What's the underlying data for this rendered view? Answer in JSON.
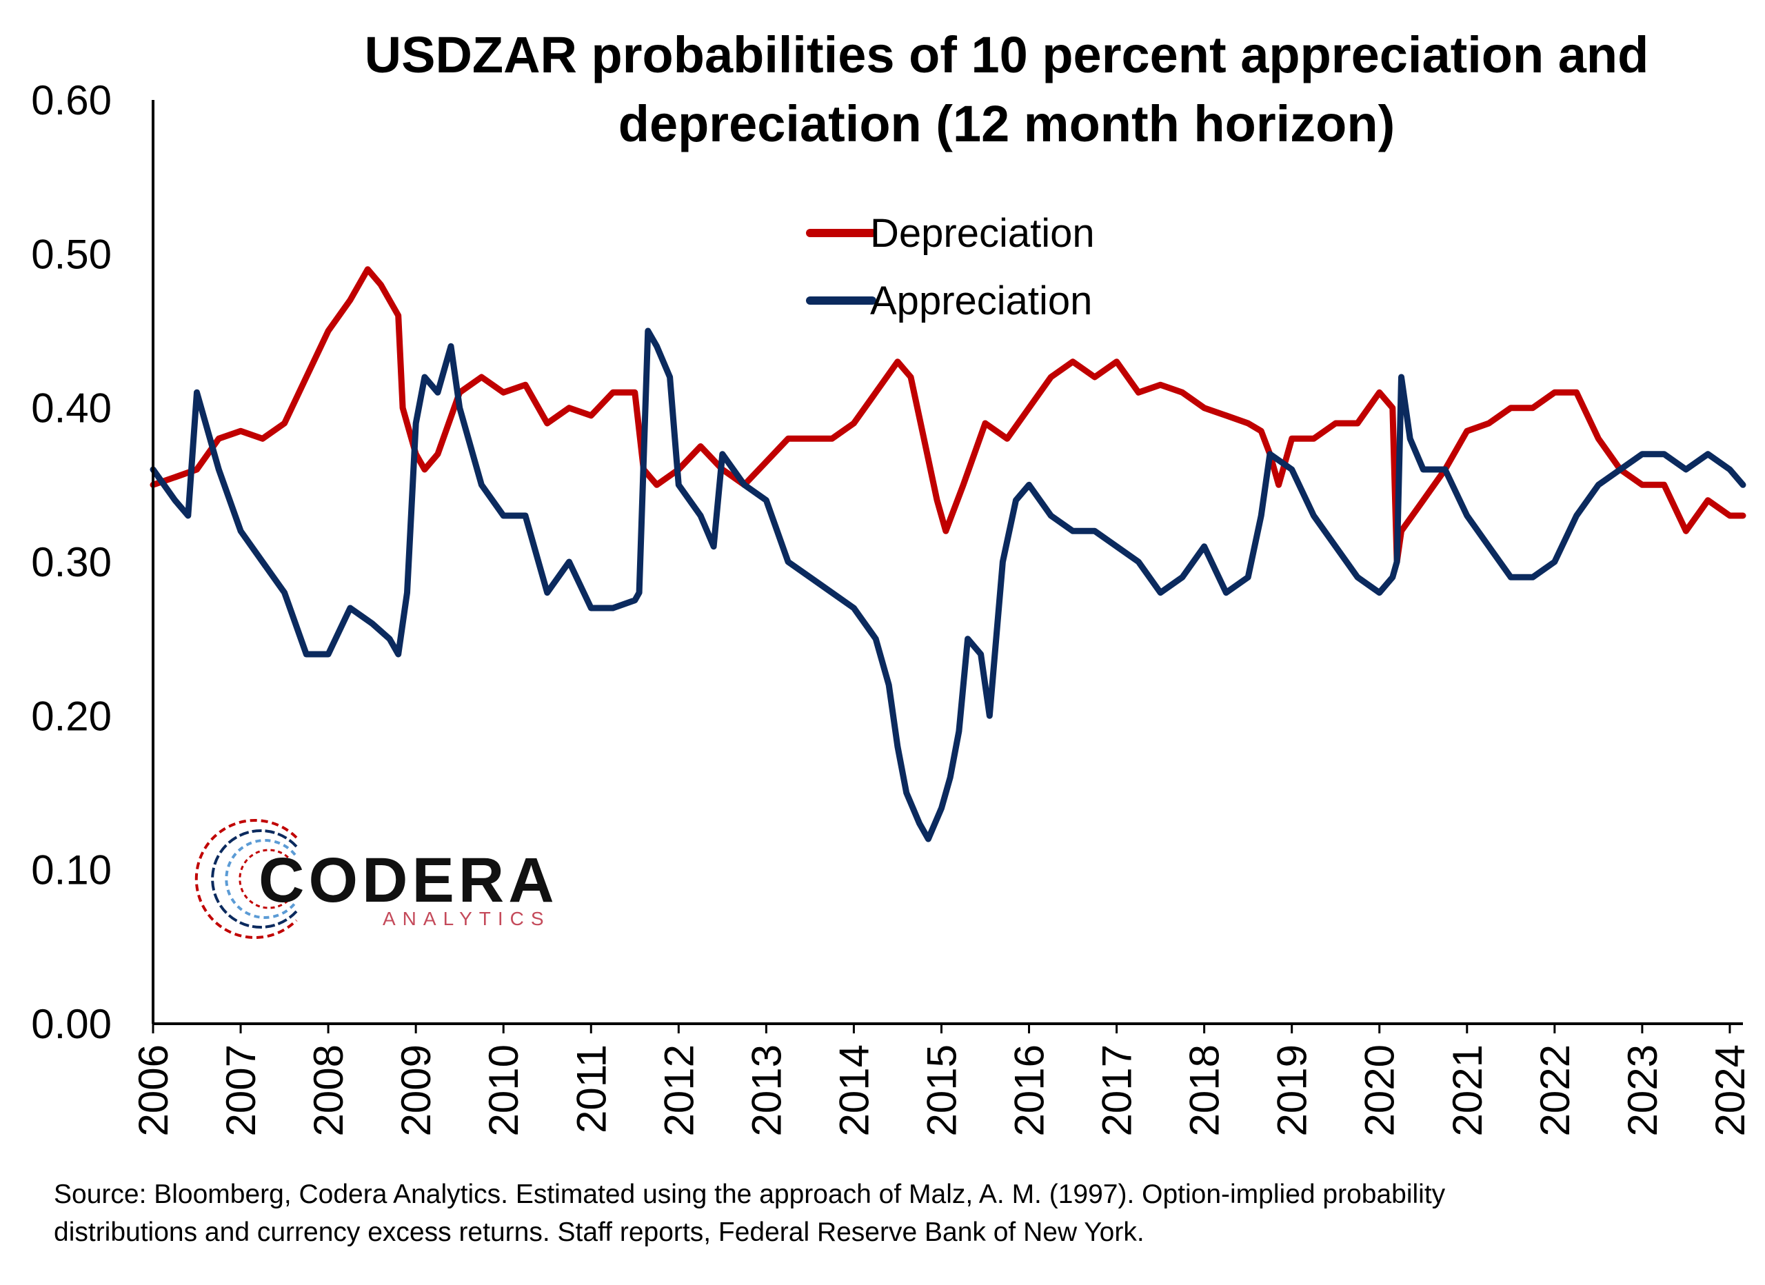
{
  "chart_data": {
    "type": "line",
    "title": "USDZAR probabilities of 10 percent appreciation and depreciation (12 month horizon)",
    "title_lines": [
      "USDZAR probabilities of 10 percent appreciation and",
      "depreciation (12 month horizon)"
    ],
    "xlabel": "",
    "ylabel": "",
    "ylim": [
      0,
      0.6
    ],
    "xlim": [
      2006,
      2024.15
    ],
    "y_ticks": [
      "0.00",
      "0.10",
      "0.20",
      "0.30",
      "0.40",
      "0.50",
      "0.60"
    ],
    "x_ticks": [
      "2006",
      "2007",
      "2008",
      "2009",
      "2010",
      "2011",
      "2012",
      "2013",
      "2014",
      "2015",
      "2016",
      "2017",
      "2018",
      "2019",
      "2020",
      "2021",
      "2022",
      "2023",
      "2024"
    ],
    "grid": false,
    "legend_position": "top-center",
    "series": [
      {
        "name": "Depreciation",
        "color": "#c00000",
        "x": [
          2006.0,
          2006.25,
          2006.5,
          2006.75,
          2007.0,
          2007.25,
          2007.5,
          2007.75,
          2008.0,
          2008.25,
          2008.45,
          2008.6,
          2008.8,
          2008.85,
          2009.0,
          2009.1,
          2009.25,
          2009.5,
          2009.75,
          2010.0,
          2010.25,
          2010.5,
          2010.75,
          2011.0,
          2011.25,
          2011.5,
          2011.6,
          2011.75,
          2012.0,
          2012.25,
          2012.5,
          2012.75,
          2013.0,
          2013.25,
          2013.5,
          2013.75,
          2014.0,
          2014.25,
          2014.5,
          2014.65,
          2014.8,
          2014.95,
          2015.05,
          2015.25,
          2015.5,
          2015.75,
          2016.0,
          2016.25,
          2016.5,
          2016.75,
          2017.0,
          2017.25,
          2017.5,
          2017.75,
          2018.0,
          2018.25,
          2018.5,
          2018.65,
          2018.75,
          2018.85,
          2019.0,
          2019.25,
          2019.5,
          2019.75,
          2020.0,
          2020.15,
          2020.2,
          2020.25,
          2020.5,
          2020.75,
          2021.0,
          2021.25,
          2021.5,
          2021.75,
          2022.0,
          2022.25,
          2022.5,
          2022.75,
          2023.0,
          2023.25,
          2023.5,
          2023.75,
          2024.0,
          2024.15
        ],
        "values": [
          0.35,
          0.355,
          0.36,
          0.38,
          0.385,
          0.38,
          0.39,
          0.42,
          0.45,
          0.47,
          0.49,
          0.48,
          0.46,
          0.4,
          0.37,
          0.36,
          0.37,
          0.41,
          0.42,
          0.41,
          0.415,
          0.39,
          0.4,
          0.395,
          0.41,
          0.41,
          0.36,
          0.35,
          0.36,
          0.375,
          0.36,
          0.35,
          0.365,
          0.38,
          0.38,
          0.38,
          0.39,
          0.41,
          0.43,
          0.42,
          0.38,
          0.34,
          0.32,
          0.35,
          0.39,
          0.38,
          0.4,
          0.42,
          0.43,
          0.42,
          0.43,
          0.41,
          0.415,
          0.41,
          0.4,
          0.395,
          0.39,
          0.385,
          0.37,
          0.35,
          0.38,
          0.38,
          0.39,
          0.39,
          0.41,
          0.4,
          0.3,
          0.32,
          0.34,
          0.36,
          0.385,
          0.39,
          0.4,
          0.4,
          0.41,
          0.41,
          0.38,
          0.36,
          0.35,
          0.35,
          0.32,
          0.34,
          0.33,
          0.33
        ]
      },
      {
        "name": "Appreciation",
        "color": "#0b2a5e",
        "x": [
          2006.0,
          2006.25,
          2006.4,
          2006.5,
          2006.75,
          2007.0,
          2007.25,
          2007.5,
          2007.75,
          2008.0,
          2008.25,
          2008.5,
          2008.7,
          2008.8,
          2008.9,
          2009.0,
          2009.1,
          2009.25,
          2009.4,
          2009.5,
          2009.75,
          2010.0,
          2010.25,
          2010.5,
          2010.75,
          2011.0,
          2011.25,
          2011.5,
          2011.55,
          2011.65,
          2011.75,
          2011.9,
          2012.0,
          2012.25,
          2012.4,
          2012.5,
          2012.75,
          2013.0,
          2013.25,
          2013.5,
          2013.75,
          2014.0,
          2014.25,
          2014.4,
          2014.5,
          2014.6,
          2014.75,
          2014.85,
          2015.0,
          2015.1,
          2015.2,
          2015.3,
          2015.45,
          2015.55,
          2015.7,
          2015.85,
          2016.0,
          2016.25,
          2016.5,
          2016.75,
          2017.0,
          2017.25,
          2017.5,
          2017.75,
          2018.0,
          2018.25,
          2018.5,
          2018.65,
          2018.75,
          2019.0,
          2019.25,
          2019.5,
          2019.75,
          2020.0,
          2020.15,
          2020.2,
          2020.25,
          2020.35,
          2020.5,
          2020.75,
          2021.0,
          2021.25,
          2021.5,
          2021.75,
          2022.0,
          2022.25,
          2022.5,
          2022.75,
          2023.0,
          2023.25,
          2023.5,
          2023.75,
          2024.0,
          2024.15
        ],
        "values": [
          0.36,
          0.34,
          0.33,
          0.41,
          0.36,
          0.32,
          0.3,
          0.28,
          0.24,
          0.24,
          0.27,
          0.26,
          0.25,
          0.24,
          0.28,
          0.39,
          0.42,
          0.41,
          0.44,
          0.4,
          0.35,
          0.33,
          0.33,
          0.28,
          0.3,
          0.27,
          0.27,
          0.275,
          0.28,
          0.45,
          0.44,
          0.42,
          0.35,
          0.33,
          0.31,
          0.37,
          0.35,
          0.34,
          0.3,
          0.29,
          0.28,
          0.27,
          0.25,
          0.22,
          0.18,
          0.15,
          0.13,
          0.12,
          0.14,
          0.16,
          0.19,
          0.25,
          0.24,
          0.2,
          0.3,
          0.34,
          0.35,
          0.33,
          0.32,
          0.32,
          0.31,
          0.3,
          0.28,
          0.29,
          0.31,
          0.28,
          0.29,
          0.33,
          0.37,
          0.36,
          0.33,
          0.31,
          0.29,
          0.28,
          0.29,
          0.3,
          0.42,
          0.38,
          0.36,
          0.36,
          0.33,
          0.31,
          0.29,
          0.29,
          0.3,
          0.33,
          0.35,
          0.36,
          0.37,
          0.37,
          0.36,
          0.37,
          0.36,
          0.35
        ]
      }
    ]
  },
  "source_lines": [
    "Source: Bloomberg, Codera Analytics. Estimated using the approach of Malz, A. M. (1997). Option-implied probability",
    "distributions and currency excess returns. Staff reports, Federal Reserve Bank of New York."
  ],
  "logo": {
    "main_text": "CODERA",
    "sub_text": "ANALYTICS",
    "sub_color": "#c44a5a",
    "accent_colors": [
      "#c00000",
      "#0b2a5e",
      "#5b9bd5"
    ]
  }
}
